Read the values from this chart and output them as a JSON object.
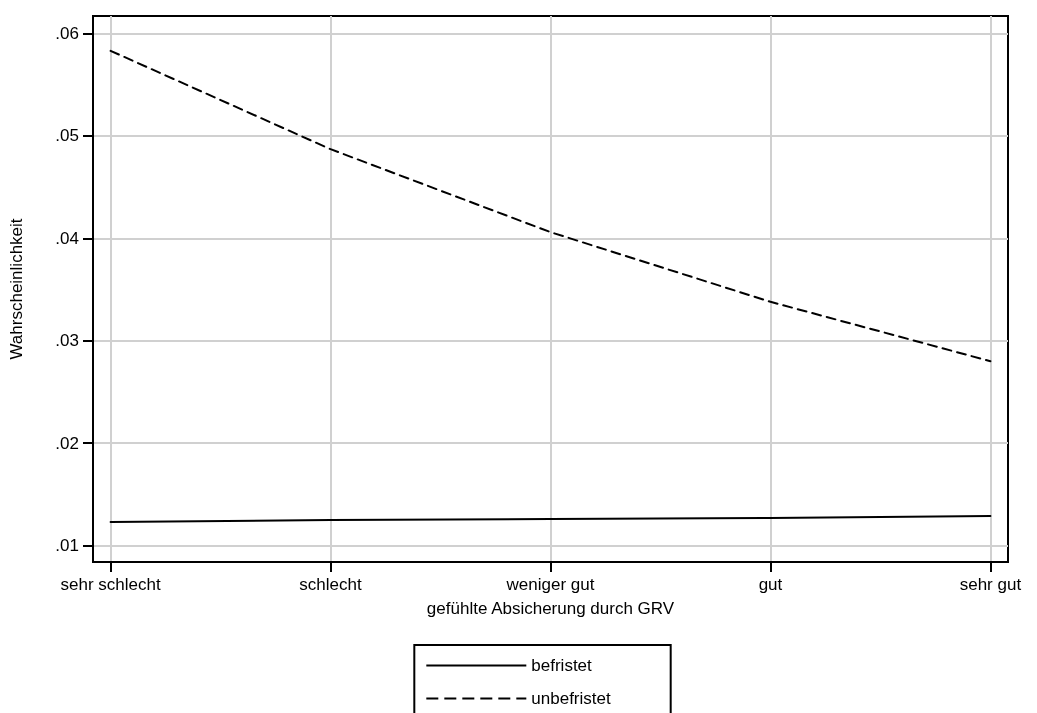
{
  "chart_data": {
    "type": "line",
    "xlabel": "gefühlte Absicherung durch GRV",
    "ylabel": "Wahrscheinlichkeit",
    "categories": [
      "sehr schlecht",
      "schlecht",
      "weniger gut",
      "gut",
      "sehr gut"
    ],
    "series": [
      {
        "name": "befristet",
        "color": "#000000",
        "line_style": "solid",
        "values": [
          0.0123,
          0.0125,
          0.0126,
          0.0127,
          0.0129
        ]
      },
      {
        "name": "unbefristet",
        "color": "#000000",
        "line_style": "dashed",
        "values": [
          0.0583,
          0.0487,
          0.0406,
          0.0338,
          0.028
        ]
      }
    ],
    "ylim": [
      0.0084,
      0.0617
    ],
    "yticks": [
      {
        "value": 0.01,
        "label": ".01"
      },
      {
        "value": 0.02,
        "label": ".02"
      },
      {
        "value": 0.03,
        "label": ".03"
      },
      {
        "value": 0.04,
        "label": ".04"
      },
      {
        "value": 0.05,
        "label": ".05"
      },
      {
        "value": 0.06,
        "label": ".06"
      }
    ],
    "grid": true,
    "legend": "bottom",
    "marker": "none"
  }
}
